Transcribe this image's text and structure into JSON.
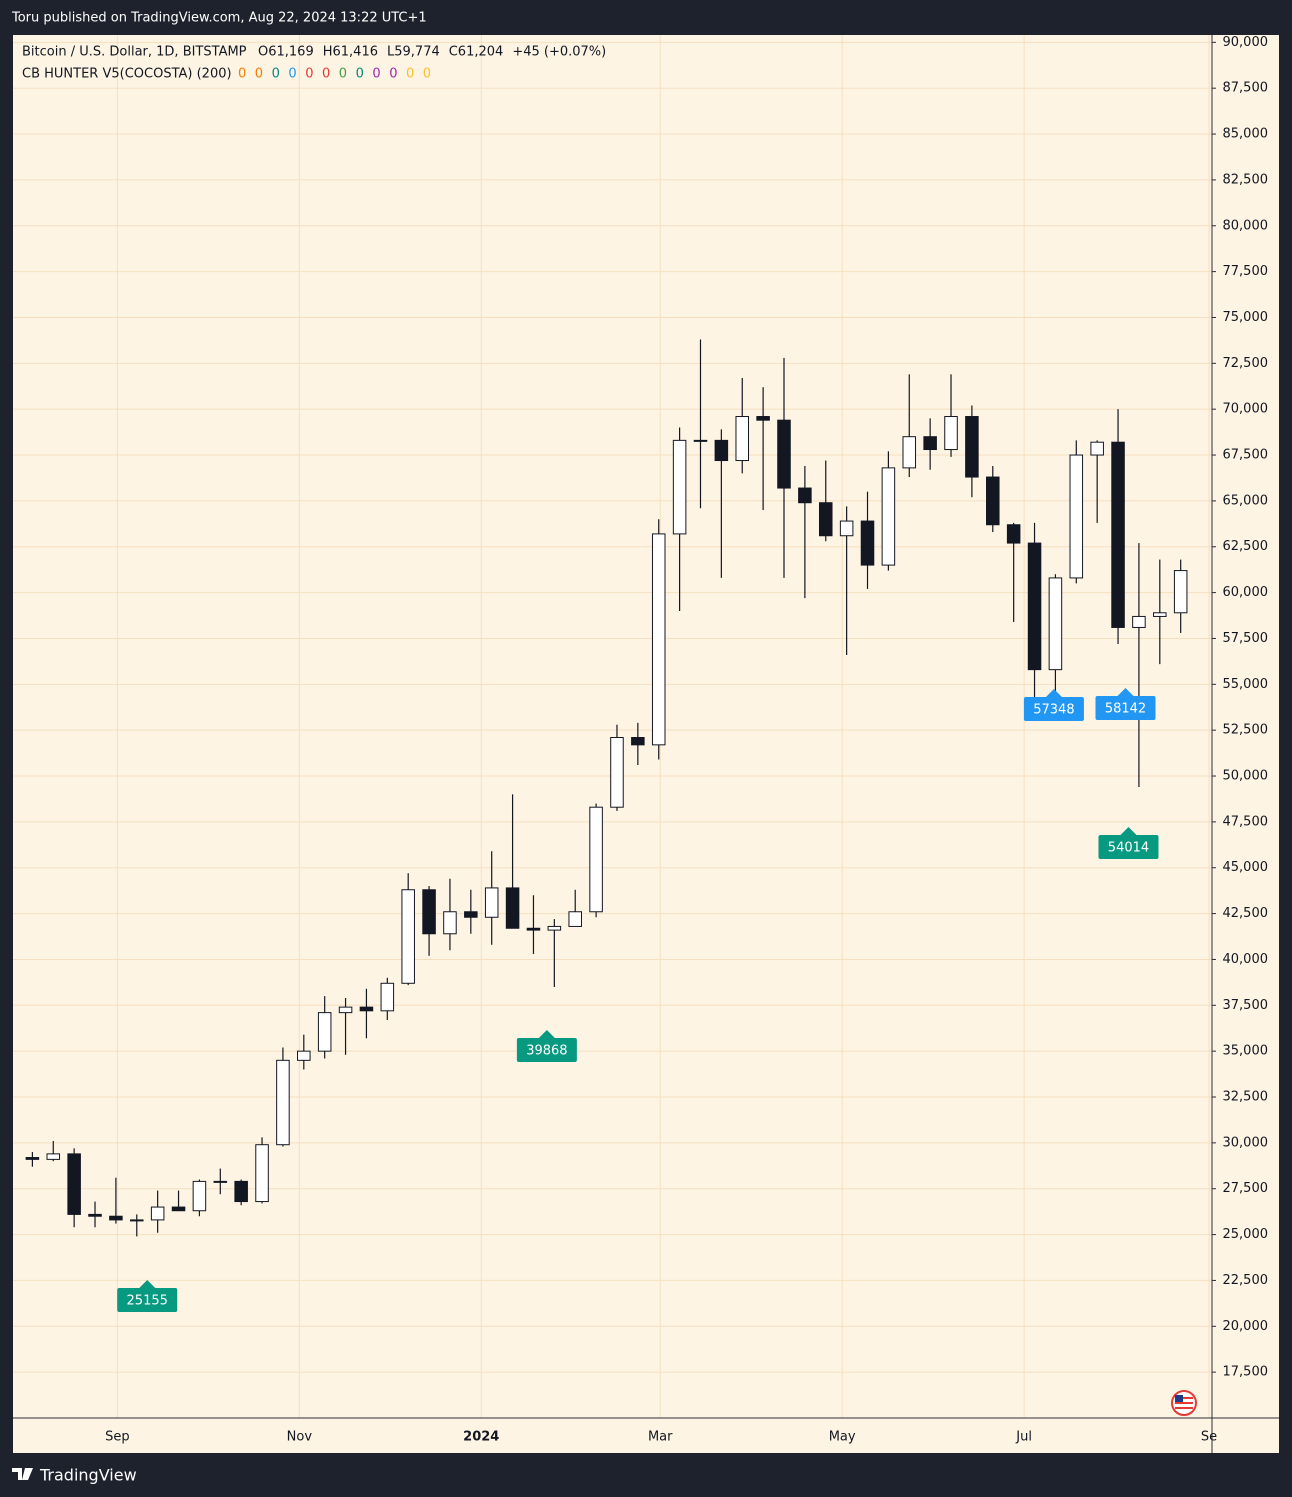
{
  "header": {
    "published": "Toru published on TradingView.com, Aug 22, 2024 13:22 UTC+1"
  },
  "footer": {
    "brand": "TradingView"
  },
  "chart_data": {
    "type": "candlestick",
    "symbol": "Bitcoin / U.S. Dollar, 1D, BITSTAMP",
    "quote": [
      "O61,169",
      "H61,416",
      "L59,774",
      "C61,204",
      "+45 (+0.07%)"
    ],
    "indicator": {
      "name": "CB HUNTER V5(COCOSTA) (200)",
      "values": [
        0,
        0,
        0,
        0,
        0,
        0,
        0,
        0,
        0,
        0,
        0,
        0
      ],
      "colors": [
        "#f57c00",
        "#f57c00",
        "#00897b",
        "#2196f3",
        "#e53935",
        "#e53935",
        "#43a047",
        "#00897b",
        "#9c27b0",
        "#9c27b0",
        "#fbc02d",
        "#fbc02d"
      ]
    },
    "up_color": "#ffffff",
    "down_color": "#131722",
    "wick_color": "#131722",
    "x": [
      "2023-07-31",
      "2023-08-07",
      "2023-08-14",
      "2023-08-21",
      "2023-08-28",
      "2023-09-04",
      "2023-09-11",
      "2023-09-18",
      "2023-09-25",
      "2023-10-02",
      "2023-10-09",
      "2023-10-16",
      "2023-10-23",
      "2023-10-30",
      "2023-11-06",
      "2023-11-13",
      "2023-11-20",
      "2023-11-27",
      "2023-12-04",
      "2023-12-11",
      "2023-12-18",
      "2023-12-25",
      "2024-01-01",
      "2024-01-08",
      "2024-01-15",
      "2024-01-22",
      "2024-01-29",
      "2024-02-05",
      "2024-02-12",
      "2024-02-19",
      "2024-02-26",
      "2024-03-04",
      "2024-03-11",
      "2024-03-18",
      "2024-03-25",
      "2024-04-01",
      "2024-04-08",
      "2024-04-15",
      "2024-04-22",
      "2024-04-29",
      "2024-05-06",
      "2024-05-13",
      "2024-05-20",
      "2024-05-27",
      "2024-06-03",
      "2024-06-10",
      "2024-06-17",
      "2024-06-24",
      "2024-07-01",
      "2024-07-08",
      "2024-07-15",
      "2024-07-22",
      "2024-07-29",
      "2024-08-05",
      "2024-08-12",
      "2024-08-19"
    ],
    "open": [
      29200,
      29100,
      29400,
      26100,
      26000,
      25800,
      25800,
      26500,
      26300,
      27900,
      27900,
      26800,
      29900,
      34500,
      35000,
      37100,
      37400,
      37200,
      38700,
      43800,
      41400,
      42600,
      42300,
      43900,
      41700,
      41600,
      41800,
      42600,
      48300,
      52100,
      51700,
      63200,
      68300,
      68300,
      67200,
      69600,
      69400,
      65700,
      64900,
      63100,
      63900,
      61500,
      66800,
      68500,
      67800,
      69600,
      66300,
      63700,
      62700,
      55800,
      60800,
      67500,
      68200,
      58100,
      58700,
      58900
    ],
    "high": [
      29500,
      30100,
      29700,
      26800,
      28100,
      26100,
      27400,
      27400,
      28000,
      28600,
      28000,
      30300,
      35200,
      35900,
      38000,
      37900,
      38400,
      39000,
      44700,
      44000,
      44400,
      43800,
      45900,
      49000,
      43500,
      42200,
      43800,
      48500,
      52800,
      52900,
      64000,
      69000,
      73800,
      68900,
      71700,
      71200,
      72800,
      66900,
      67200,
      64700,
      65500,
      67700,
      71900,
      69500,
      71900,
      70200,
      66900,
      63800,
      63800,
      61000,
      68300,
      68300,
      70000,
      62700,
      61800,
      61800
    ],
    "low": [
      28700,
      29000,
      25400,
      25400,
      25600,
      24900,
      25100,
      26300,
      26000,
      27200,
      26600,
      26700,
      29800,
      34000,
      34600,
      34800,
      35700,
      36700,
      38600,
      40200,
      40500,
      41400,
      40800,
      41700,
      40300,
      38500,
      41800,
      42300,
      48100,
      50600,
      50900,
      59000,
      64600,
      60800,
      66500,
      64500,
      60800,
      59700,
      62800,
      56600,
      60200,
      61200,
      66300,
      66700,
      67400,
      65200,
      63300,
      58400,
      53600,
      54300,
      60500,
      63800,
      57200,
      49400,
      56100,
      57800
    ],
    "close": [
      29100,
      29400,
      26100,
      26000,
      25800,
      25800,
      26500,
      26300,
      27900,
      27900,
      26800,
      29900,
      34500,
      35000,
      37100,
      37400,
      37200,
      38700,
      43800,
      41400,
      42600,
      42300,
      43900,
      41700,
      41600,
      41800,
      42600,
      48300,
      52100,
      51700,
      63200,
      68300,
      68300,
      67200,
      69600,
      69400,
      65700,
      64900,
      63100,
      63900,
      61500,
      66800,
      68500,
      67800,
      69600,
      66300,
      63700,
      62700,
      55800,
      60800,
      67500,
      68200,
      58100,
      58700,
      58900,
      61200
    ],
    "xlim": [
      "2023-07-28",
      "2024-09-02"
    ],
    "xticks": [
      {
        "value": "2023-09-01",
        "label": "Sep"
      },
      {
        "value": "2023-11-01",
        "label": "Nov"
      },
      {
        "value": "2024-01-01",
        "label": "2024"
      },
      {
        "value": "2024-03-01",
        "label": "Mar"
      },
      {
        "value": "2024-05-01",
        "label": "May"
      },
      {
        "value": "2024-07-01",
        "label": "Jul"
      },
      {
        "value": "2024-09-01",
        "label": "Se"
      }
    ],
    "ylim": [
      15000,
      90400
    ],
    "yticks": [
      {
        "value": 17500,
        "label": "17,500"
      },
      {
        "value": 20000,
        "label": "20,000"
      },
      {
        "value": 22500,
        "label": "22,500"
      },
      {
        "value": 25000,
        "label": "25,000"
      },
      {
        "value": 27500,
        "label": "27,500"
      },
      {
        "value": 30000,
        "label": "30,000"
      },
      {
        "value": 32500,
        "label": "32,500"
      },
      {
        "value": 35000,
        "label": "35,000"
      },
      {
        "value": 37500,
        "label": "37,500"
      },
      {
        "value": 40000,
        "label": "40,000"
      },
      {
        "value": 42500,
        "label": "42,500"
      },
      {
        "value": 45000,
        "label": "45,000"
      },
      {
        "value": 47500,
        "label": "47,500"
      },
      {
        "value": 50000,
        "label": "50,000"
      },
      {
        "value": 52500,
        "label": "52,500"
      },
      {
        "value": 55000,
        "label": "55,000"
      },
      {
        "value": 57500,
        "label": "57,500"
      },
      {
        "value": 60000,
        "label": "60,000"
      },
      {
        "value": 62500,
        "label": "62,500"
      },
      {
        "value": 65000,
        "label": "65,000"
      },
      {
        "value": 67500,
        "label": "67,500"
      },
      {
        "value": 70000,
        "label": "70,000"
      },
      {
        "value": 72500,
        "label": "72,500"
      },
      {
        "value": 75000,
        "label": "75,000"
      },
      {
        "value": 77500,
        "label": "77,500"
      },
      {
        "value": 80000,
        "label": "80,000"
      },
      {
        "value": 82500,
        "label": "82,500"
      },
      {
        "value": 85000,
        "label": "85,000"
      },
      {
        "value": 87500,
        "label": "87,500"
      },
      {
        "value": 90000,
        "label": "90,000"
      }
    ],
    "grid": true,
    "grid_color": "#f6dfbf",
    "annotations": [
      {
        "label": "39868",
        "x": "2024-01-23",
        "color": "#089981"
      },
      {
        "label": "54014",
        "x": "2024-08-05",
        "color": "#089981"
      },
      {
        "label": "58142",
        "x": "2024-08-04",
        "color": "#2196f3"
      },
      {
        "label": "57348",
        "x": "2024-07-11",
        "color": "#2196f3"
      },
      {
        "label": "25155",
        "x": "2023-09-11",
        "color": "#089981"
      }
    ]
  }
}
